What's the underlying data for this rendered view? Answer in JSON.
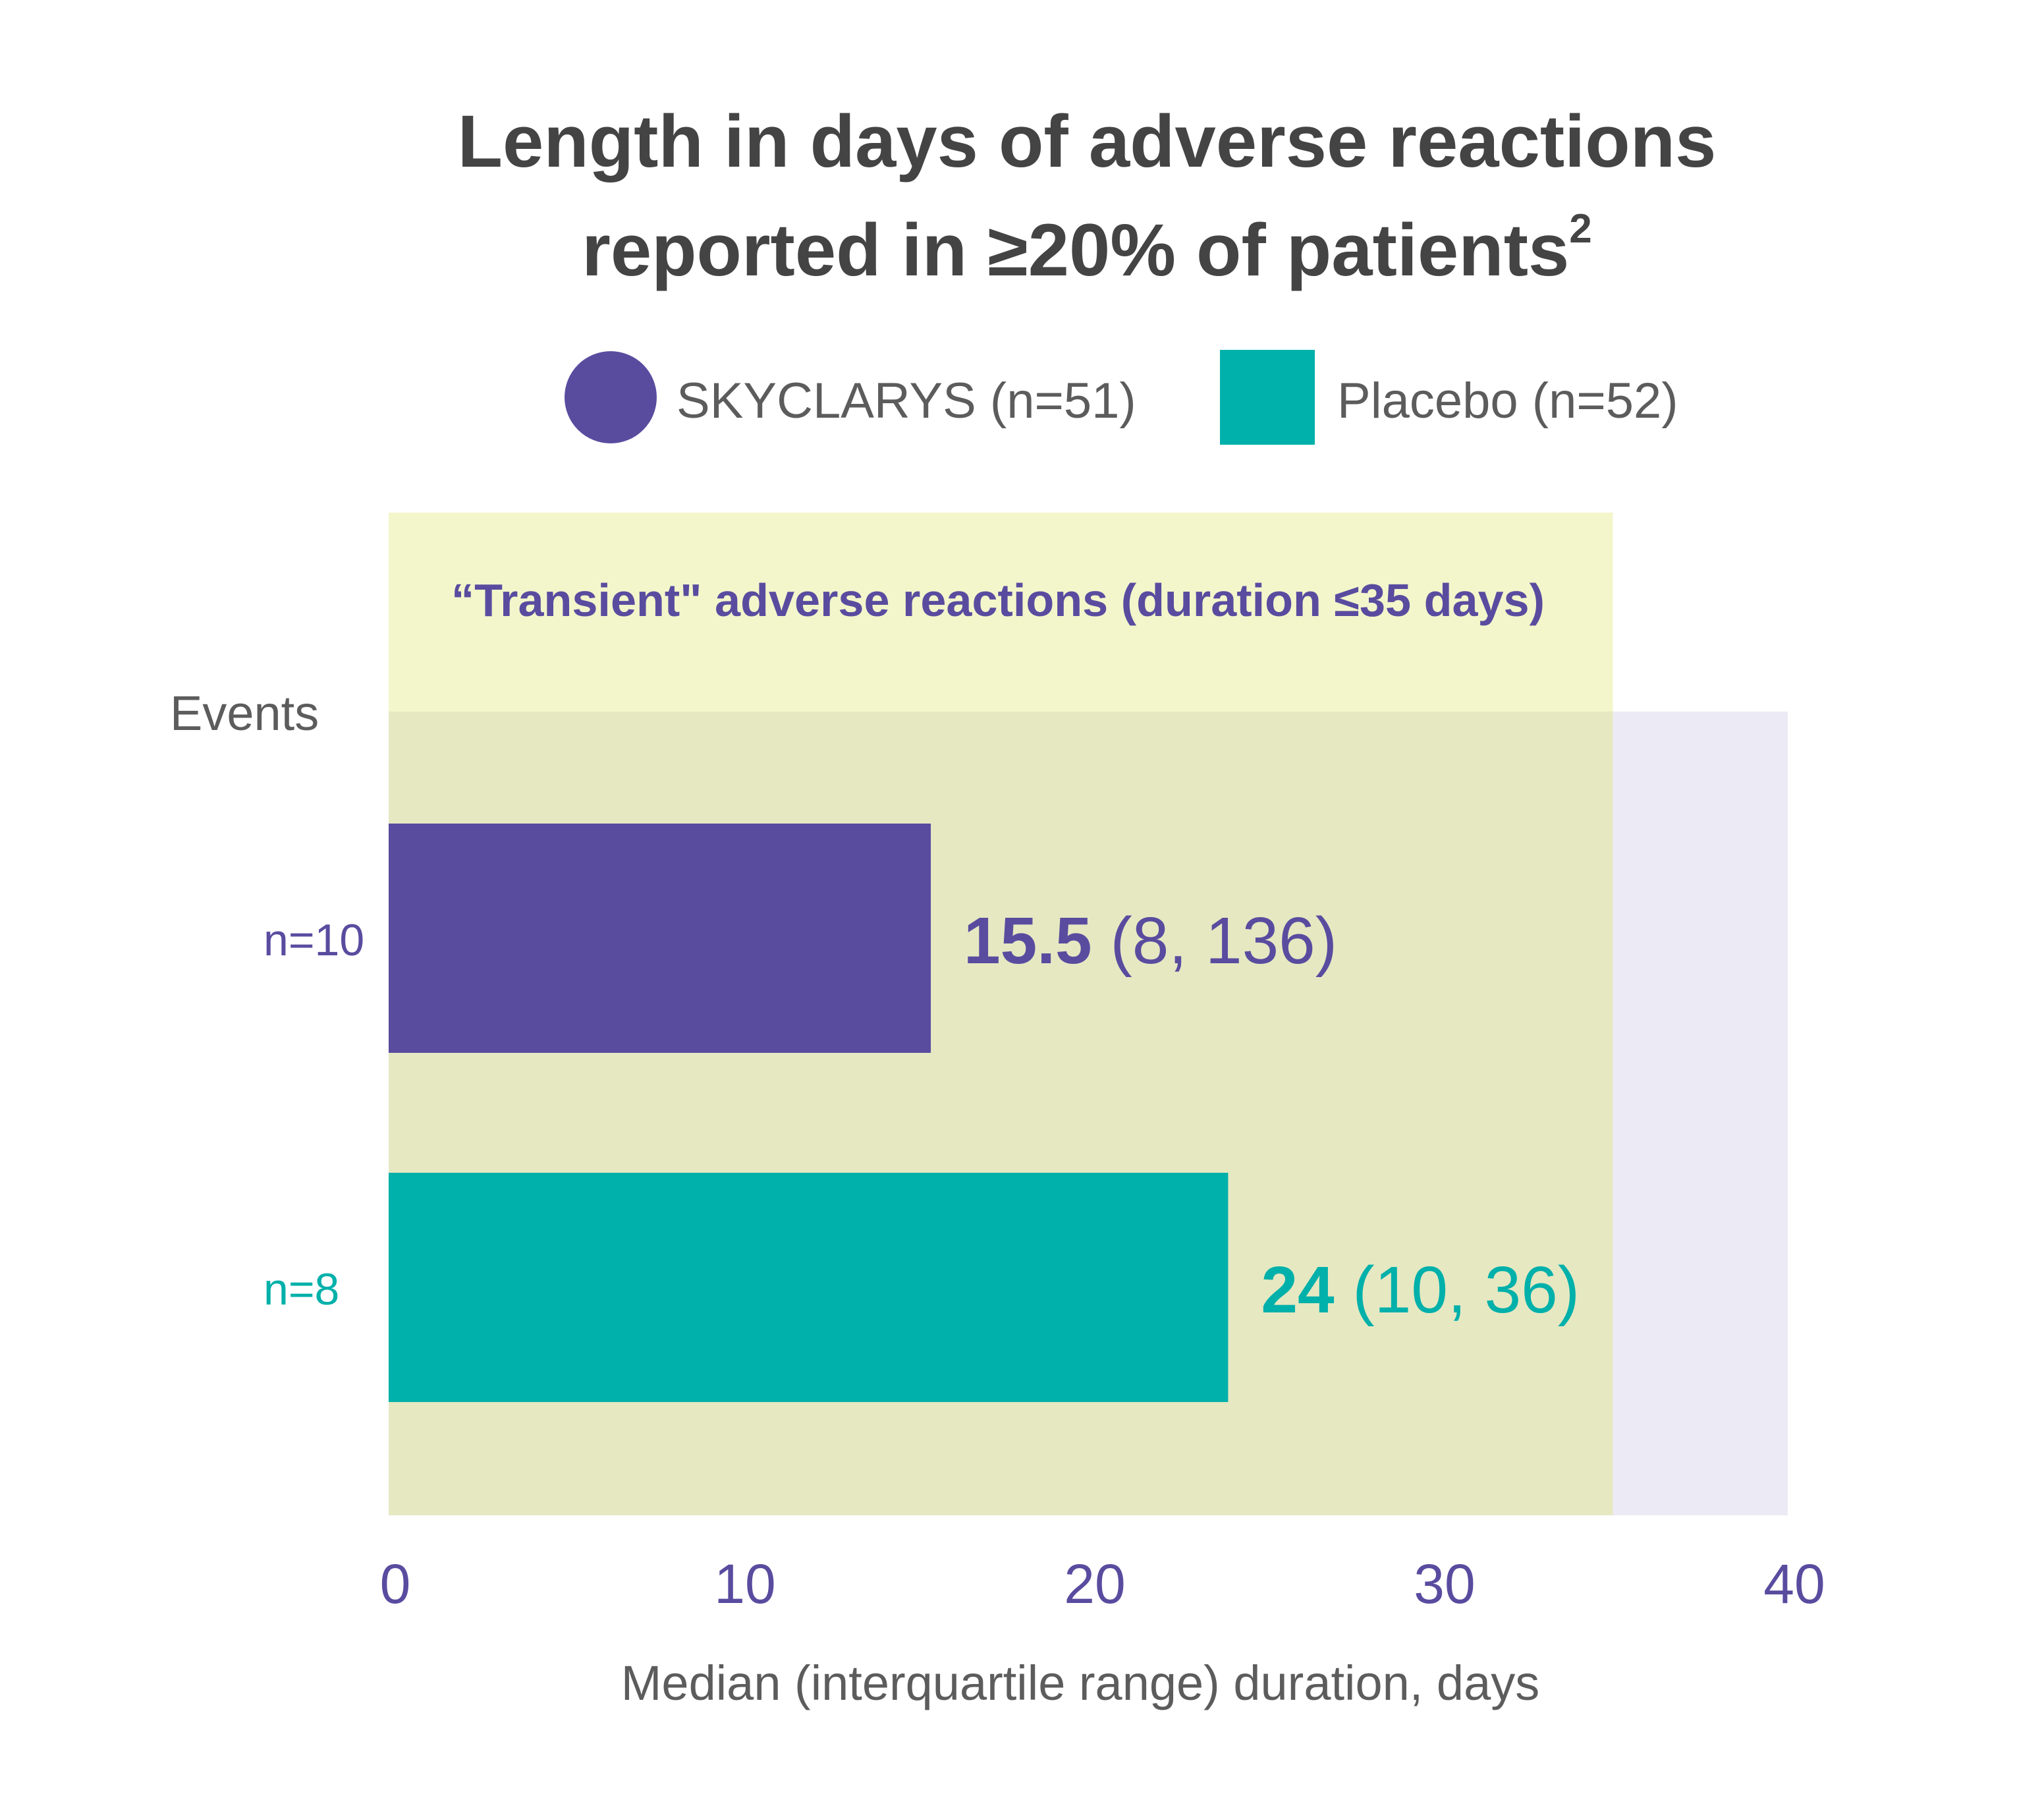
{
  "colors": {
    "skyclarys": "#594c9f",
    "placebo": "#00b0aa",
    "region": "#f3f6cb",
    "region_overlap": "#e6e8c2",
    "plot_bg": "#eceaf4",
    "title": "#444444",
    "text": "#5c5c5c"
  },
  "chart_data": {
    "type": "bar",
    "orientation": "horizontal",
    "title_line1": "Length in days of adverse reactions",
    "title_line2": "reported in ≥20% of patients",
    "title_superscript": "2",
    "legend": [
      {
        "name": "SKYCLARYS (n=51)",
        "marker": "circle",
        "color": "#594c9f"
      },
      {
        "name": "Placebo (n=52)",
        "marker": "square",
        "color": "#00b0aa"
      }
    ],
    "y_header": "Events",
    "categories": [
      "n=10",
      "n=8"
    ],
    "values": [
      15.5,
      24
    ],
    "value_labels_bold": [
      "15.5",
      "24"
    ],
    "value_labels_range": [
      "(8, 136)",
      "(10, 36)"
    ],
    "bar_colors": [
      "#594c9f",
      "#00b0aa"
    ],
    "region": {
      "label": "“Transient\" adverse reactions (duration ≤35 days)",
      "from": 0,
      "to": 35
    },
    "xlim": [
      0,
      40
    ],
    "xticks": [
      "0",
      "10",
      "20",
      "30",
      "40"
    ],
    "xlabel": "Median (interquartile range) duration, days",
    "grid": false
  }
}
